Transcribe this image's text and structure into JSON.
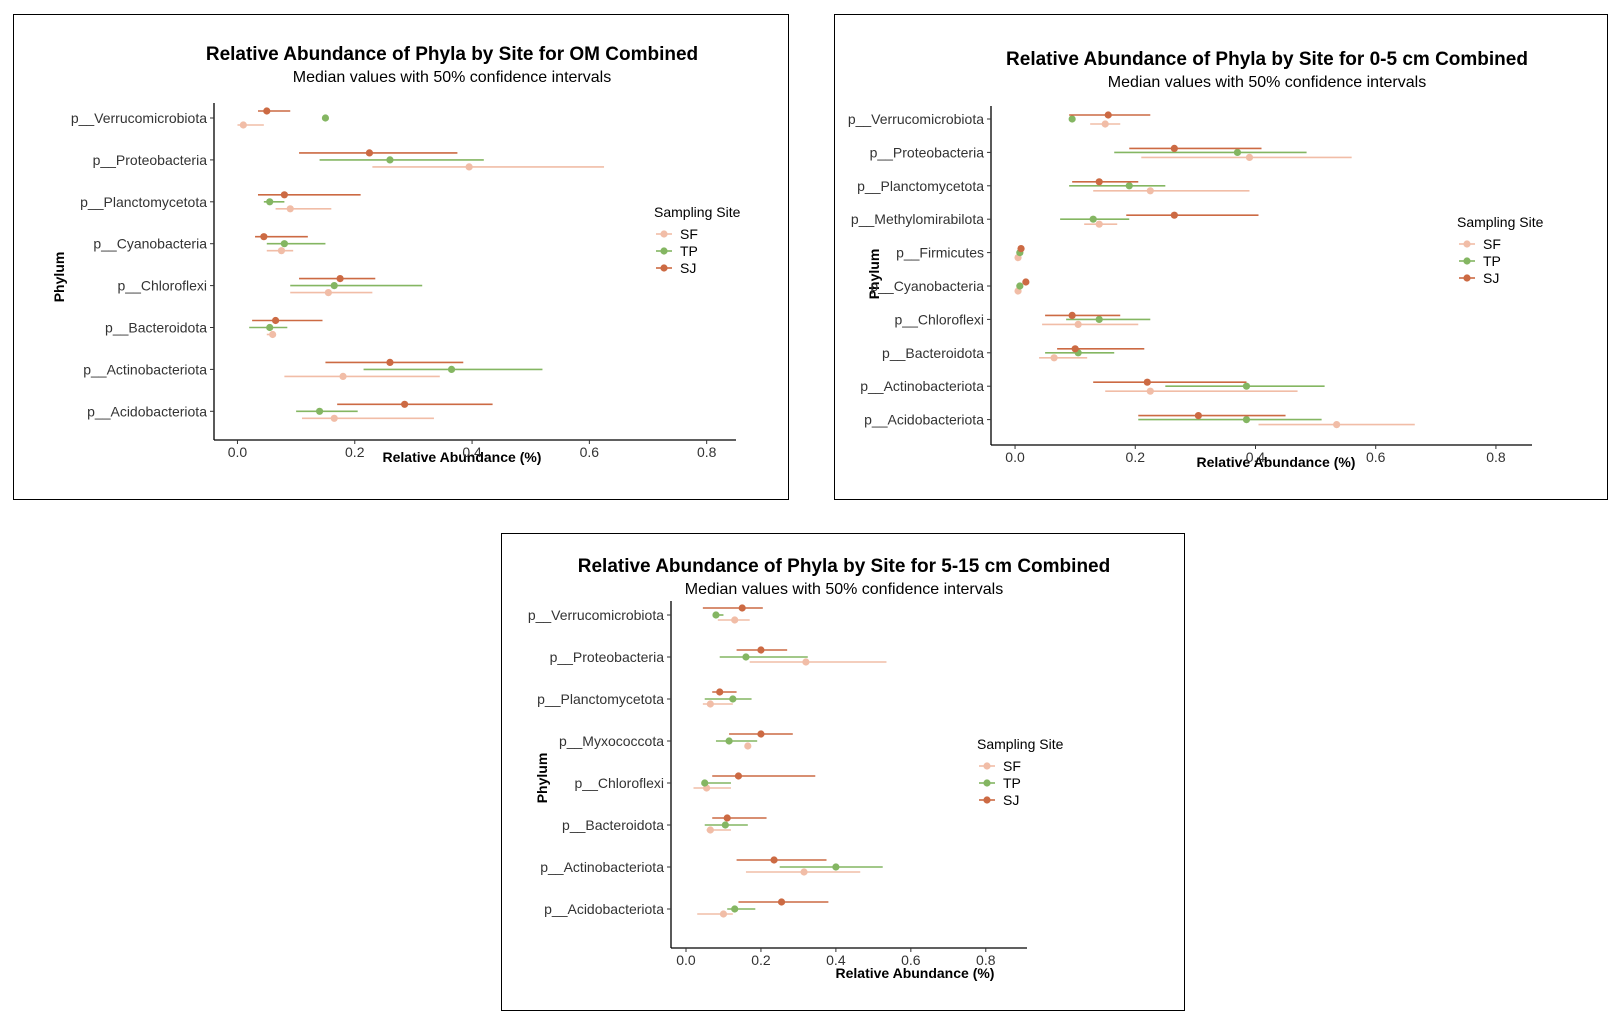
{
  "colors": {
    "SF": "#f1bda7",
    "TP": "#84b662",
    "SJ": "#cc6a43"
  },
  "chart_data": [
    {
      "type": "dot-interval",
      "title": "Relative Abundance of Phyla by Site for OM Combined",
      "subtitle": "Median values with 50% confidence intervals",
      "xlabel": "Relative Abundance (%)",
      "ylabel": "Phylum",
      "xlim": [
        -0.04,
        0.85
      ],
      "xticks": [
        "0.0",
        "0.2",
        "0.4",
        "0.6",
        "0.8"
      ],
      "legend_title": "Sampling Site",
      "legend_position": "right",
      "categories": [
        "p__Verrucomicrobiota",
        "p__Proteobacteria",
        "p__Planctomycetota",
        "p__Cyanobacteria",
        "p__Chloroflexi",
        "p__Bacteroidota",
        "p__Actinobacteriota",
        "p__Acidobacteriota"
      ],
      "series": [
        {
          "name": "SF",
          "points": [
            {
              "median": 0.01,
              "low": 0.0,
              "high": 0.045
            },
            {
              "median": 0.395,
              "low": 0.23,
              "high": 0.625
            },
            {
              "median": 0.09,
              "low": 0.065,
              "high": 0.16
            },
            {
              "median": 0.075,
              "low": 0.05,
              "high": 0.095
            },
            {
              "median": 0.155,
              "low": 0.09,
              "high": 0.23
            },
            {
              "median": 0.06,
              "low": 0.05,
              "high": 0.065
            },
            {
              "median": 0.18,
              "low": 0.08,
              "high": 0.345
            },
            {
              "median": 0.165,
              "low": 0.11,
              "high": 0.335
            }
          ]
        },
        {
          "name": "TP",
          "points": [
            {
              "median": 0.15,
              "low": 0.15,
              "high": 0.15
            },
            {
              "median": 0.26,
              "low": 0.14,
              "high": 0.42
            },
            {
              "median": 0.055,
              "low": 0.045,
              "high": 0.08
            },
            {
              "median": 0.08,
              "low": 0.05,
              "high": 0.15
            },
            {
              "median": 0.165,
              "low": 0.09,
              "high": 0.315
            },
            {
              "median": 0.055,
              "low": 0.02,
              "high": 0.085
            },
            {
              "median": 0.365,
              "low": 0.215,
              "high": 0.52
            },
            {
              "median": 0.14,
              "low": 0.1,
              "high": 0.205
            }
          ]
        },
        {
          "name": "SJ",
          "points": [
            {
              "median": 0.05,
              "low": 0.035,
              "high": 0.09
            },
            {
              "median": 0.225,
              "low": 0.105,
              "high": 0.375
            },
            {
              "median": 0.08,
              "low": 0.035,
              "high": 0.21
            },
            {
              "median": 0.045,
              "low": 0.03,
              "high": 0.12
            },
            {
              "median": 0.175,
              "low": 0.105,
              "high": 0.235
            },
            {
              "median": 0.065,
              "low": 0.025,
              "high": 0.145
            },
            {
              "median": 0.26,
              "low": 0.15,
              "high": 0.385
            },
            {
              "median": 0.285,
              "low": 0.17,
              "high": 0.435
            }
          ]
        }
      ]
    },
    {
      "type": "dot-interval",
      "title": "Relative Abundance of Phyla by Site for 0-5 cm Combined",
      "subtitle": "Median values with 50% confidence intervals",
      "xlabel": "Relative Abundance (%)",
      "ylabel": "Phylum",
      "xlim": [
        -0.04,
        0.86
      ],
      "xticks": [
        "0.0",
        "0.2",
        "0.4",
        "0.6",
        "0.8"
      ],
      "legend_title": "Sampling Site",
      "legend_position": "right",
      "categories": [
        "p__Verrucomicrobiota",
        "p__Proteobacteria",
        "p__Planctomycetota",
        "p__Methylomirabilota",
        "p__Firmicutes",
        "p__Cyanobacteria",
        "p__Chloroflexi",
        "p__Bacteroidota",
        "p__Actinobacteriota",
        "p__Acidobacteriota"
      ],
      "series": [
        {
          "name": "SF",
          "points": [
            {
              "median": 0.15,
              "low": 0.125,
              "high": 0.175
            },
            {
              "median": 0.39,
              "low": 0.21,
              "high": 0.56
            },
            {
              "median": 0.225,
              "low": 0.13,
              "high": 0.39
            },
            {
              "median": 0.14,
              "low": 0.115,
              "high": 0.17
            },
            {
              "median": 0.005,
              "low": 0.005,
              "high": 0.005
            },
            {
              "median": 0.005,
              "low": 0.005,
              "high": 0.005
            },
            {
              "median": 0.105,
              "low": 0.045,
              "high": 0.205
            },
            {
              "median": 0.065,
              "low": 0.04,
              "high": 0.12
            },
            {
              "median": 0.225,
              "low": 0.15,
              "high": 0.47
            },
            {
              "median": 0.535,
              "low": 0.405,
              "high": 0.665
            }
          ]
        },
        {
          "name": "TP",
          "points": [
            {
              "median": 0.095,
              "low": 0.095,
              "high": 0.095
            },
            {
              "median": 0.37,
              "low": 0.165,
              "high": 0.485
            },
            {
              "median": 0.19,
              "low": 0.09,
              "high": 0.25
            },
            {
              "median": 0.13,
              "low": 0.075,
              "high": 0.19
            },
            {
              "median": 0.008,
              "low": 0.008,
              "high": 0.008
            },
            {
              "median": 0.008,
              "low": 0.008,
              "high": 0.008
            },
            {
              "median": 0.14,
              "low": 0.085,
              "high": 0.225
            },
            {
              "median": 0.105,
              "low": 0.05,
              "high": 0.165
            },
            {
              "median": 0.385,
              "low": 0.25,
              "high": 0.515
            },
            {
              "median": 0.385,
              "low": 0.205,
              "high": 0.51
            }
          ]
        },
        {
          "name": "SJ",
          "points": [
            {
              "median": 0.155,
              "low": 0.09,
              "high": 0.225
            },
            {
              "median": 0.265,
              "low": 0.19,
              "high": 0.41
            },
            {
              "median": 0.14,
              "low": 0.095,
              "high": 0.205
            },
            {
              "median": 0.265,
              "low": 0.185,
              "high": 0.405
            },
            {
              "median": 0.01,
              "low": 0.01,
              "high": 0.01
            },
            {
              "median": 0.018,
              "low": 0.018,
              "high": 0.018
            },
            {
              "median": 0.095,
              "low": 0.05,
              "high": 0.175
            },
            {
              "median": 0.1,
              "low": 0.07,
              "high": 0.215
            },
            {
              "median": 0.22,
              "low": 0.13,
              "high": 0.385
            },
            {
              "median": 0.305,
              "low": 0.205,
              "high": 0.45
            }
          ]
        }
      ]
    },
    {
      "type": "dot-interval",
      "title": "Relative Abundance of Phyla by Site for 5-15 cm Combined",
      "subtitle": "Median values with 50% confidence intervals",
      "xlabel": "Relative Abundance (%)",
      "ylabel": "Phylum",
      "xlim": [
        -0.04,
        0.91
      ],
      "xticks": [
        "0.0",
        "0.2",
        "0.4",
        "0.6",
        "0.8"
      ],
      "legend_title": "Sampling Site",
      "legend_position": "right",
      "categories": [
        "p__Verrucomicrobiota",
        "p__Proteobacteria",
        "p__Planctomycetota",
        "p__Myxococcota",
        "p__Chloroflexi",
        "p__Bacteroidota",
        "p__Actinobacteriota",
        "p__Acidobacteriota"
      ],
      "series": [
        {
          "name": "SF",
          "points": [
            {
              "median": 0.13,
              "low": 0.085,
              "high": 0.17
            },
            {
              "median": 0.32,
              "low": 0.17,
              "high": 0.535
            },
            {
              "median": 0.065,
              "low": 0.045,
              "high": 0.125
            },
            {
              "median": 0.165,
              "low": 0.165,
              "high": 0.165
            },
            {
              "median": 0.055,
              "low": 0.02,
              "high": 0.12
            },
            {
              "median": 0.065,
              "low": 0.055,
              "high": 0.12
            },
            {
              "median": 0.315,
              "low": 0.16,
              "high": 0.465
            },
            {
              "median": 0.1,
              "low": 0.03,
              "high": 0.125
            }
          ]
        },
        {
          "name": "TP",
          "points": [
            {
              "median": 0.08,
              "low": 0.075,
              "high": 0.1
            },
            {
              "median": 0.16,
              "low": 0.09,
              "high": 0.325
            },
            {
              "median": 0.125,
              "low": 0.05,
              "high": 0.175
            },
            {
              "median": 0.115,
              "low": 0.08,
              "high": 0.19
            },
            {
              "median": 0.05,
              "low": 0.045,
              "high": 0.12
            },
            {
              "median": 0.105,
              "low": 0.05,
              "high": 0.165
            },
            {
              "median": 0.4,
              "low": 0.25,
              "high": 0.525
            },
            {
              "median": 0.13,
              "low": 0.11,
              "high": 0.185
            }
          ]
        },
        {
          "name": "SJ",
          "points": [
            {
              "median": 0.15,
              "low": 0.045,
              "high": 0.205
            },
            {
              "median": 0.2,
              "low": 0.135,
              "high": 0.27
            },
            {
              "median": 0.09,
              "low": 0.07,
              "high": 0.135
            },
            {
              "median": 0.2,
              "low": 0.115,
              "high": 0.285
            },
            {
              "median": 0.14,
              "low": 0.07,
              "high": 0.345
            },
            {
              "median": 0.11,
              "low": 0.07,
              "high": 0.215
            },
            {
              "median": 0.235,
              "low": 0.135,
              "high": 0.375
            },
            {
              "median": 0.255,
              "low": 0.14,
              "high": 0.38
            }
          ]
        }
      ]
    }
  ]
}
